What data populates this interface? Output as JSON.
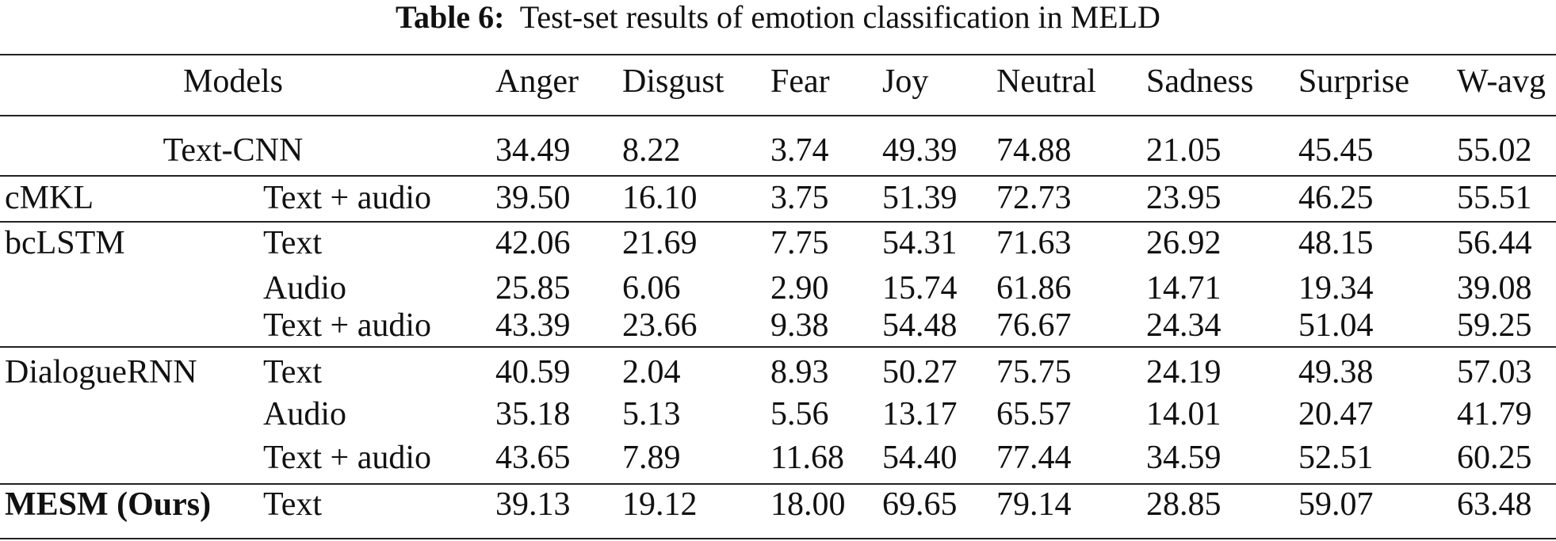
{
  "caption": {
    "label": "Table 6:",
    "text": "Test-set results of emotion classification in MELD"
  },
  "table": {
    "header": [
      "Models",
      "Anger",
      "Disgust",
      "Fear",
      "Joy",
      "Neutral",
      "Sadness",
      "Surprise",
      "W-avg"
    ],
    "groups": [
      {
        "model": "Text-CNN",
        "rows": [
          {
            "values": [
              "34.49",
              "8.22",
              "3.74",
              "49.39",
              "74.88",
              "21.05",
              "45.45",
              "55.02"
            ]
          }
        ]
      },
      {
        "model": "cMKL",
        "rows": [
          {
            "modality": "Text + audio",
            "values": [
              "39.50",
              "16.10",
              "3.75",
              "51.39",
              "72.73",
              "23.95",
              "46.25",
              "55.51"
            ]
          }
        ]
      },
      {
        "model": "bcLSTM",
        "rows": [
          {
            "modality": "Text",
            "values": [
              "42.06",
              "21.69",
              "7.75",
              "54.31",
              "71.63",
              "26.92",
              "48.15",
              "56.44"
            ]
          },
          {
            "modality": "Audio",
            "values": [
              "25.85",
              "6.06",
              "2.90",
              "15.74",
              "61.86",
              "14.71",
              "19.34",
              "39.08"
            ]
          },
          {
            "modality": "Text + audio",
            "values": [
              "43.39",
              "23.66",
              "9.38",
              "54.48",
              "76.67",
              "24.34",
              "51.04",
              "59.25"
            ]
          }
        ]
      },
      {
        "model": "DialogueRNN",
        "rows": [
          {
            "modality": "Text",
            "values": [
              "40.59",
              "2.04",
              "8.93",
              "50.27",
              "75.75",
              "24.19",
              "49.38",
              "57.03"
            ]
          },
          {
            "modality": "Audio",
            "values": [
              "35.18",
              "5.13",
              "5.56",
              "13.17",
              "65.57",
              "14.01",
              "20.47",
              "41.79"
            ]
          },
          {
            "modality": "Text + audio",
            "values": [
              "43.65",
              "7.89",
              "11.68",
              "54.40",
              "77.44",
              "34.59",
              "52.51",
              "60.25"
            ]
          }
        ]
      },
      {
        "model": "MESM (Ours)",
        "bold": true,
        "rows": [
          {
            "modality": "Text",
            "values": [
              "39.13",
              "19.12",
              "18.00",
              "69.65",
              "79.14",
              "28.85",
              "59.07",
              "63.48"
            ]
          }
        ]
      }
    ]
  }
}
